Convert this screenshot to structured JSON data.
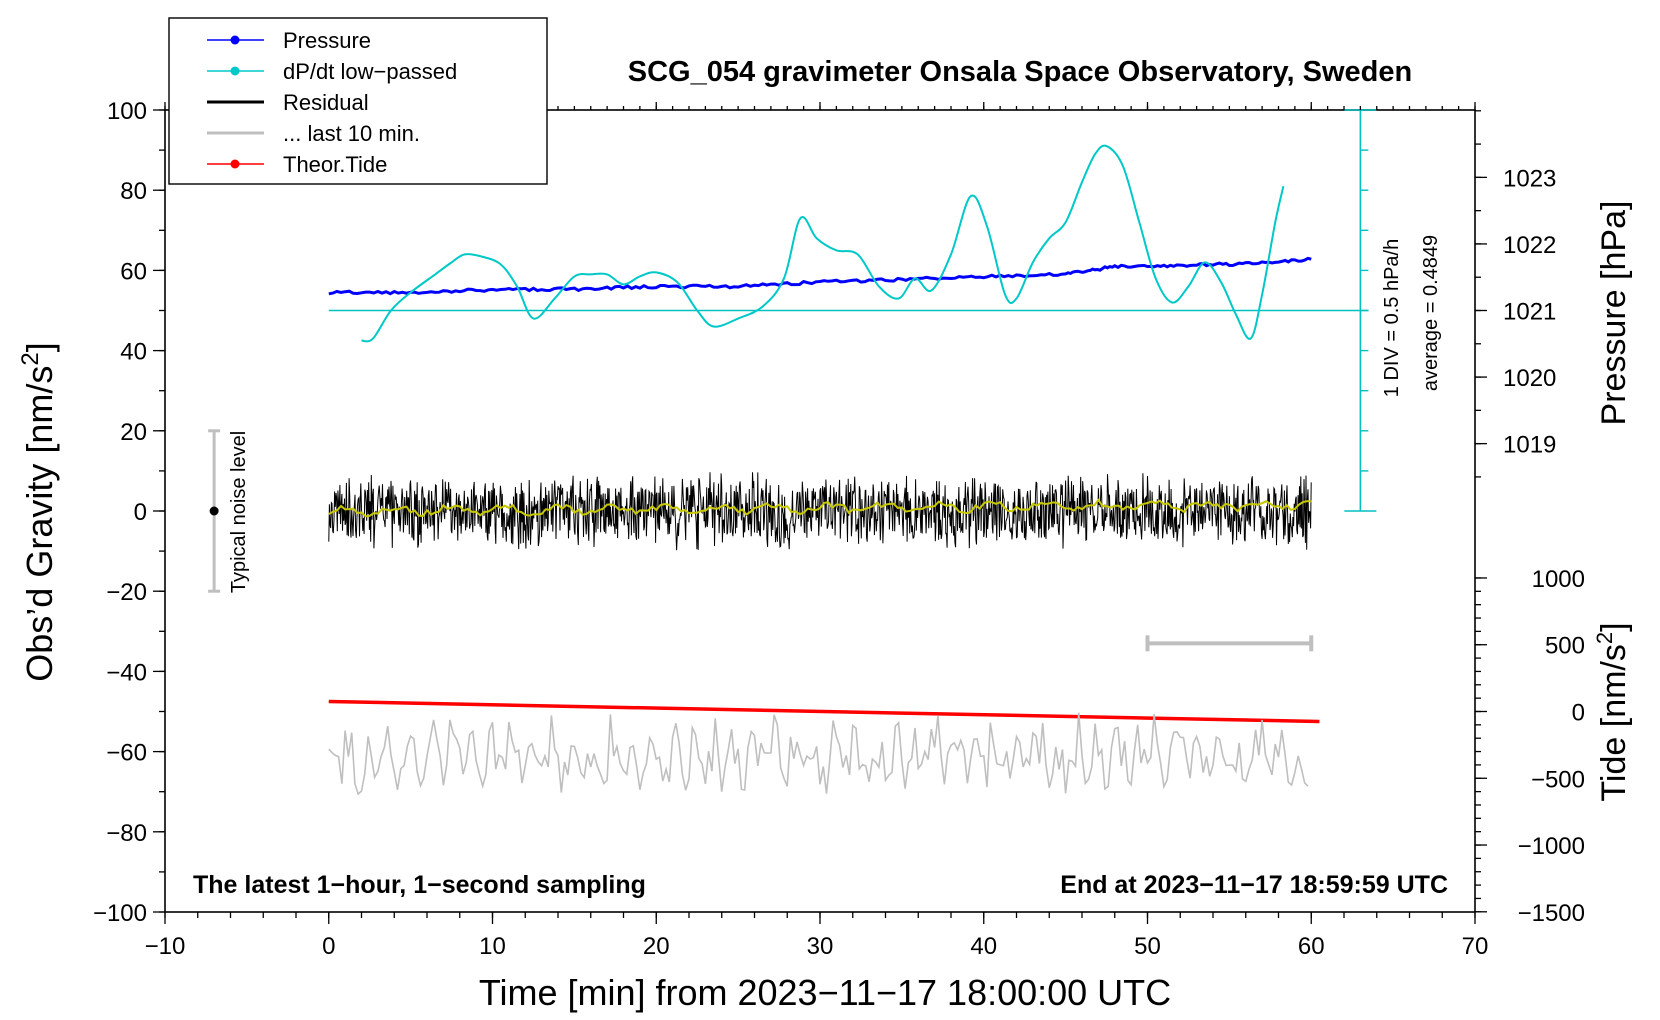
{
  "chart_data": {
    "type": "line",
    "title": "SCG_054 gravimeter Onsala Space Observatory, Sweden",
    "xlabel": "Time [min] from 2023−11−17 18:00:00 UTC",
    "ylabel_prefix": "Obs’d Gravity [nm/s",
    "ylabel_sup": "2",
    "ylabel_suffix": "]",
    "y2_pressure_label": "Pressure [hPa]",
    "y2_tide_label_prefix": "Tide [nm/s",
    "y2_tide_label_sup": "2",
    "y2_tide_label_suffix": "]",
    "xlim": [
      -10,
      70
    ],
    "ylim": [
      -100,
      100
    ],
    "x_ticks": [
      -10,
      0,
      10,
      20,
      30,
      40,
      50,
      60,
      70
    ],
    "x_tick_labels": [
      "−10",
      "0",
      "10",
      "20",
      "30",
      "40",
      "50",
      "60",
      "70"
    ],
    "y_ticks": [
      -100,
      -80,
      -60,
      -40,
      -20,
      0,
      20,
      40,
      60,
      80,
      100
    ],
    "y_tick_labels": [
      "−100",
      "−80",
      "−60",
      "−40",
      "−20",
      "0",
      "20",
      "40",
      "60",
      "80",
      "100"
    ],
    "pressure_axis": {
      "ticks": [
        1019,
        1020,
        1021,
        1022,
        1023
      ],
      "tick_labels": [
        "1019",
        "1020",
        "1021",
        "1022",
        "1023"
      ],
      "anchor_value": 1021,
      "anchor_gravity": 50,
      "gravity_per_hPa": 16.6
    },
    "tide_axis": {
      "ticks": [
        -1500,
        -1000,
        -500,
        0,
        500,
        1000
      ],
      "tick_labels": [
        "−1500",
        "−1000",
        "−500",
        "0",
        "500",
        "1000"
      ],
      "anchor_value": 0,
      "anchor_gravity": -50,
      "gravity_per_unit": 0.0333
    },
    "annotations": {
      "bottom_left": "The latest 1−hour, 1−second sampling",
      "bottom_right": "End at 2023−11−17 18:59:59 UTC",
      "noise_label": "Typical noise level",
      "div_label": "1 DIV = 0.5 hPa/h",
      "average_label": "average = 0.4849"
    },
    "noise_bar": {
      "x": -7,
      "y_center": 0,
      "y_low": -20,
      "y_high": 20
    },
    "dpdt_baseline": 50,
    "dpdt_scale": {
      "x": 63,
      "y_low": 0,
      "y_high": 100,
      "divisions": 10
    },
    "last10_bar": {
      "x_start": 50,
      "x_end": 60,
      "y": -33
    },
    "legend": {
      "position": "top-left",
      "entries": [
        {
          "label": "Pressure",
          "color": "#0000ff",
          "marker": true
        },
        {
          "label": "dP/dt low−passed",
          "color": "#00c8c8",
          "marker": true
        },
        {
          "label": "Residual",
          "color": "#000000",
          "marker": false
        },
        {
          "label": "... last 10 min.",
          "color": "#bfbfbf",
          "marker": false
        },
        {
          "label": "Theor.Tide",
          "color": "#ff0000",
          "marker": true
        }
      ]
    },
    "series": [
      {
        "name": "Pressure",
        "color": "#0000ff",
        "x": [
          0,
          5,
          10,
          15,
          20,
          25,
          30,
          35,
          40,
          45,
          48,
          52,
          56,
          60
        ],
        "values": [
          54.5,
          54.5,
          55.2,
          55.3,
          56.0,
          56.0,
          57.1,
          57.7,
          58.5,
          59.0,
          61.0,
          61.3,
          61.6,
          62.8
        ]
      },
      {
        "name": "dP/dt low−passed",
        "color": "#00c8c8",
        "x": [
          2.0,
          2.7,
          3.8,
          5.0,
          6.5,
          7.5,
          8.3,
          9.3,
          10.5,
          11.5,
          12.5,
          13.8,
          15.0,
          16.0,
          17.0,
          18.0,
          19.0,
          20.0,
          21.3,
          22.5,
          23.5,
          25.0,
          26.5,
          27.8,
          28.8,
          29.8,
          31.0,
          32.3,
          33.6,
          34.8,
          35.8,
          36.8,
          38.0,
          39.2,
          40.2,
          41.3,
          42.0,
          43.0,
          44.0,
          45.0,
          46.0,
          46.8,
          47.5,
          48.5,
          49.5,
          50.5,
          51.5,
          52.5,
          53.5,
          54.5,
          55.4,
          56.3,
          57.0,
          57.8,
          58.3
        ],
        "values": [
          42.5,
          43,
          50,
          54.5,
          59,
          62,
          64,
          63.5,
          61.5,
          56,
          48,
          53,
          58.5,
          59,
          59,
          56.5,
          58.5,
          59.5,
          57,
          50,
          46,
          48,
          51,
          58,
          73,
          68,
          65,
          64,
          56,
          53,
          58,
          55,
          64,
          78.5,
          71,
          54,
          53,
          62,
          68,
          72,
          82,
          89,
          91,
          86,
          72,
          58,
          52,
          56,
          62,
          57,
          49,
          43,
          54,
          72,
          81
        ]
      },
      {
        "name": "Residual",
        "color": "#000000",
        "x_range": [
          0,
          60
        ],
        "amplitude": 11,
        "smoothed_color": "#c8c800"
      },
      {
        "name": "Theor.Tide",
        "color": "#ff0000",
        "x": [
          0,
          60.5
        ],
        "values": [
          -47.5,
          -52.5
        ]
      },
      {
        "name": "... last 10 min.",
        "color": "#bfbfbf",
        "x_range": [
          0,
          60
        ],
        "center": -61,
        "amplitude": 12
      }
    ]
  }
}
